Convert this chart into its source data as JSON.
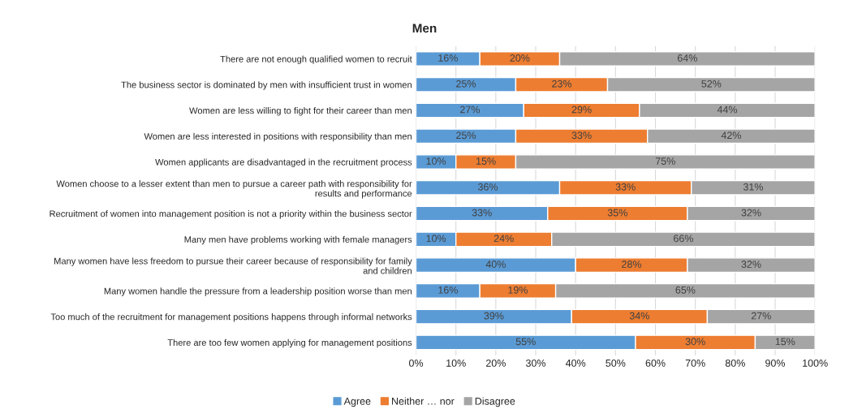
{
  "chart_data": {
    "type": "bar",
    "orientation": "horizontal",
    "stacked": true,
    "title": "Men",
    "categories": [
      "There are not enough qualified women to recruit",
      "The business sector is dominated by men with insufficient trust in women",
      "Women are less willing to fight for their career than men",
      "Women are less interested in positions with responsibility than men",
      "Women applicants are disadvantaged in the recruitment process",
      "Women choose to a lesser extent than men to pursue a career path with responsibility for\nresults and performance",
      "Recruitment of women into management position is not a priority within the business sector",
      "Many men have problems working with female managers",
      "Many women have less freedom to pursue their career because of responsibility for family\nand children",
      "Many women handle the pressure from a leadership position worse than men",
      "Too much of the recruitment for management positions happens through informal networks",
      "There are too few women applying for management positions"
    ],
    "series": [
      {
        "name": "Agree",
        "color": "#5b9bd5",
        "values": [
          16,
          25,
          27,
          25,
          10,
          36,
          33,
          10,
          40,
          16,
          39,
          55
        ],
        "value_labels": [
          "16%",
          "25%",
          "27%",
          "25%",
          "10%",
          "36%",
          "33%",
          "10%",
          "40%",
          "16%",
          "39%",
          "55%"
        ]
      },
      {
        "name": "Neither … nor",
        "color": "#ed7d31",
        "values": [
          20,
          23,
          29,
          33,
          15,
          33,
          35,
          24,
          28,
          19,
          34,
          30
        ],
        "value_labels": [
          "20%",
          "23%",
          "29%",
          "33%",
          "15%",
          "33%",
          "35%",
          "24%",
          "28%",
          "19%",
          "34%",
          "30%"
        ]
      },
      {
        "name": "Disagree",
        "color": "#a5a5a5",
        "values": [
          64,
          52,
          44,
          42,
          75,
          31,
          32,
          66,
          32,
          65,
          27,
          15
        ],
        "value_labels": [
          "64%",
          "52%",
          "44%",
          "42%",
          "75%",
          "31%",
          "32%",
          "66%",
          "32%",
          "65%",
          "27%",
          "15%"
        ]
      }
    ],
    "xlim": [
      0,
      100
    ],
    "xticks": [
      {
        "value": 0,
        "label": "0%"
      },
      {
        "value": 10,
        "label": "10%"
      },
      {
        "value": 20,
        "label": "20%"
      },
      {
        "value": 30,
        "label": "30%"
      },
      {
        "value": 40,
        "label": "40%"
      },
      {
        "value": 50,
        "label": "50%"
      },
      {
        "value": 60,
        "label": "60%"
      },
      {
        "value": 70,
        "label": "70%"
      },
      {
        "value": 80,
        "label": "80%"
      },
      {
        "value": 90,
        "label": "90%"
      },
      {
        "value": 100,
        "label": "100%"
      }
    ],
    "grid": "x",
    "legend": "bottom"
  }
}
